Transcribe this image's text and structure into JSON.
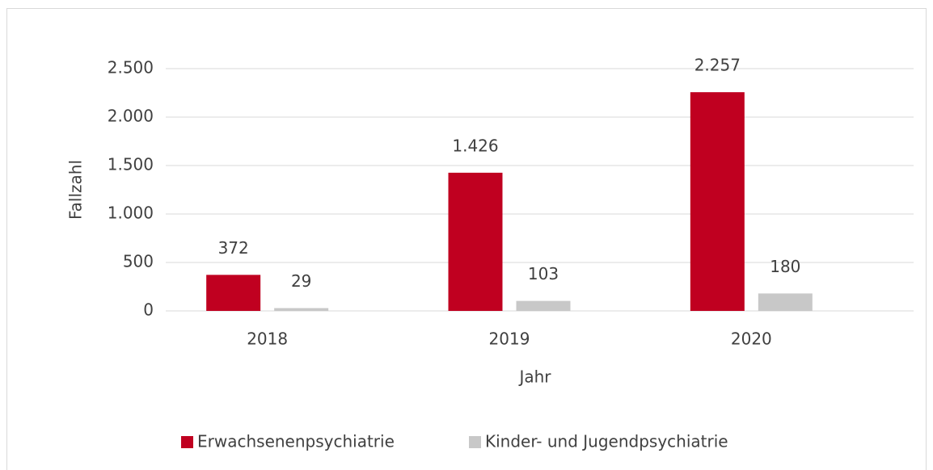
{
  "chart_data": {
    "type": "bar",
    "categories": [
      "2018",
      "2019",
      "2020"
    ],
    "series": [
      {
        "name": "Erwachsenenpsychiatrie",
        "color": "#c00020",
        "values": [
          372,
          1426,
          2257
        ],
        "value_labels": [
          "372",
          "1.426",
          "2.257"
        ]
      },
      {
        "name": "Kinder- und Jugendpsychiatrie",
        "color": "#c8c8c8",
        "values": [
          29,
          103,
          180
        ],
        "value_labels": [
          "29",
          "103",
          "180"
        ]
      }
    ],
    "xlabel": "Jahr",
    "ylabel": "Fallzahl",
    "ylim": [
      0,
      2500
    ],
    "yticks": [
      0,
      500,
      {
        "value": 1000,
        "label": "1.000"
      },
      {
        "value": 1500,
        "label": "1.500"
      },
      {
        "value": 2000,
        "label": "2.000"
      },
      {
        "value": 2500,
        "label": "2.500"
      }
    ],
    "grid": true,
    "legend": "bottom"
  }
}
